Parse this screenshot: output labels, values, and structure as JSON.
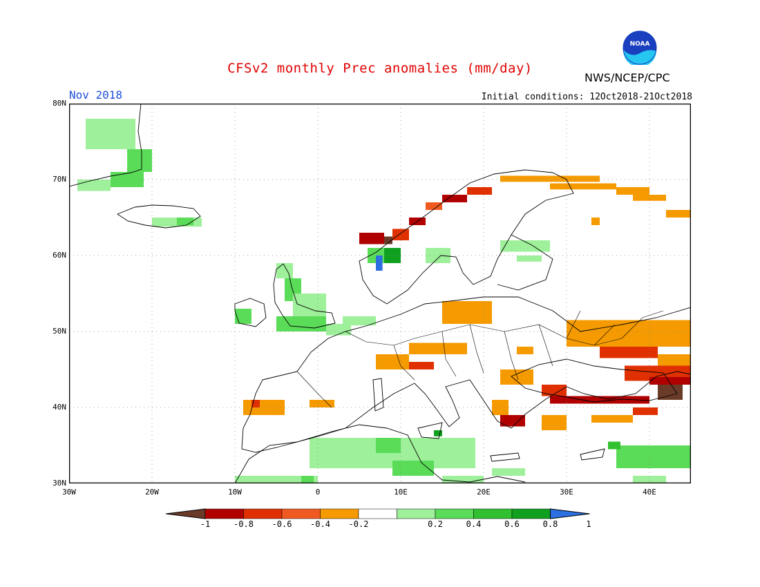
{
  "header": {
    "title": "CFSv2 monthly Prec anomalies (mm/day)",
    "org": "NWS/NCEP/CPC",
    "month": "Nov 2018",
    "initial_conditions": "Initial conditions: 12Oct2018-21Oct2018",
    "logo_text": "NOAA"
  },
  "map": {
    "lat_labels": [
      "80N",
      "70N",
      "60N",
      "50N",
      "40N",
      "30N"
    ],
    "lon_labels": [
      "30W",
      "20W",
      "10W",
      "0",
      "10E",
      "20E",
      "30E",
      "40E"
    ],
    "lon_range": [
      -30,
      45
    ],
    "lat_range": [
      30,
      80
    ],
    "ocean_color": "#ffffff",
    "border_color": "#000000",
    "grid": "dotted"
  },
  "legend": {
    "labels": [
      "-1",
      "-0.8",
      "-0.6",
      "-0.4",
      "-0.2",
      "0.2",
      "0.4",
      "0.6",
      "0.8",
      "1"
    ],
    "colors": [
      "#6b3b2a",
      "#b00000",
      "#e03000",
      "#f05a20",
      "#f59a00",
      "#ffffff",
      "#9ef09a",
      "#5adc58",
      "#30c030",
      "#10a020",
      "#2b6fe0"
    ]
  },
  "anomalies": {
    "colors": {
      "brown": "#6b3b2a",
      "darkred": "#b00000",
      "red": "#e03000",
      "orangered": "#f05a20",
      "orange": "#f59a00",
      "lightgreen": "#9ef09a",
      "green": "#5adc58",
      "midgreen": "#30c030",
      "darkgreen": "#10a020",
      "blue": "#2b6fe0"
    },
    "cells": [
      {
        "c": "lightgreen",
        "lon": -28,
        "lat": 78,
        "w": 6,
        "h": 4
      },
      {
        "c": "green",
        "lon": -23,
        "lat": 74,
        "w": 3,
        "h": 3
      },
      {
        "c": "green",
        "lon": -25,
        "lat": 71,
        "w": 4,
        "h": 2
      },
      {
        "c": "lightgreen",
        "lon": -29,
        "lat": 70,
        "w": 4,
        "h": 1.5
      },
      {
        "c": "lightgreen",
        "lon": -20,
        "lat": 65,
        "w": 6,
        "h": 1.2
      },
      {
        "c": "green",
        "lon": -17,
        "lat": 65,
        "w": 2,
        "h": 1
      },
      {
        "c": "lightgreen",
        "lon": -5,
        "lat": 59,
        "w": 2,
        "h": 2
      },
      {
        "c": "green",
        "lon": -4,
        "lat": 57,
        "w": 2,
        "h": 3
      },
      {
        "c": "lightgreen",
        "lon": -3,
        "lat": 55,
        "w": 4,
        "h": 3
      },
      {
        "c": "green",
        "lon": -10,
        "lat": 53,
        "w": 2,
        "h": 2
      },
      {
        "c": "green",
        "lon": -5,
        "lat": 52,
        "w": 6,
        "h": 2
      },
      {
        "c": "lightgreen",
        "lon": 1,
        "lat": 51,
        "w": 3,
        "h": 1.5
      },
      {
        "c": "lightgreen",
        "lon": 3,
        "lat": 52,
        "w": 4,
        "h": 1.2
      },
      {
        "c": "darkred",
        "lon": 5,
        "lat": 63,
        "w": 3,
        "h": 1.5
      },
      {
        "c": "brown",
        "lon": 8,
        "lat": 62.5,
        "w": 1,
        "h": 1
      },
      {
        "c": "red",
        "lon": 9,
        "lat": 63.5,
        "w": 2,
        "h": 1.5
      },
      {
        "c": "darkred",
        "lon": 11,
        "lat": 65,
        "w": 2,
        "h": 1
      },
      {
        "c": "orangered",
        "lon": 13,
        "lat": 67,
        "w": 2,
        "h": 1
      },
      {
        "c": "darkred",
        "lon": 15,
        "lat": 68,
        "w": 3,
        "h": 1
      },
      {
        "c": "red",
        "lon": 18,
        "lat": 69,
        "w": 3,
        "h": 1
      },
      {
        "c": "orange",
        "lon": 22,
        "lat": 70.5,
        "w": 12,
        "h": 0.8
      },
      {
        "c": "orange",
        "lon": 28,
        "lat": 69.5,
        "w": 8,
        "h": 0.8
      },
      {
        "c": "orange",
        "lon": 36,
        "lat": 69,
        "w": 4,
        "h": 1
      },
      {
        "c": "orange",
        "lon": 38,
        "lat": 68,
        "w": 4,
        "h": 0.8
      },
      {
        "c": "orange",
        "lon": 42,
        "lat": 66,
        "w": 3,
        "h": 1
      },
      {
        "c": "orange",
        "lon": 33,
        "lat": 65,
        "w": 1,
        "h": 1
      },
      {
        "c": "green",
        "lon": 6,
        "lat": 61,
        "w": 2,
        "h": 2
      },
      {
        "c": "blue",
        "lon": 7,
        "lat": 60,
        "w": 0.8,
        "h": 2
      },
      {
        "c": "darkgreen",
        "lon": 8,
        "lat": 61,
        "w": 2,
        "h": 2
      },
      {
        "c": "lightgreen",
        "lon": 13,
        "lat": 61,
        "w": 3,
        "h": 2
      },
      {
        "c": "lightgreen",
        "lon": 22,
        "lat": 62,
        "w": 6,
        "h": 1.5
      },
      {
        "c": "lightgreen",
        "lon": 24,
        "lat": 60,
        "w": 3,
        "h": 0.8
      },
      {
        "c": "orange",
        "lon": 15,
        "lat": 54,
        "w": 6,
        "h": 3
      },
      {
        "c": "orange",
        "lon": 11,
        "lat": 48.5,
        "w": 7,
        "h": 1.5
      },
      {
        "c": "orange",
        "lon": 7,
        "lat": 47,
        "w": 4,
        "h": 2
      },
      {
        "c": "red",
        "lon": 11,
        "lat": 46,
        "w": 3,
        "h": 1
      },
      {
        "c": "orange",
        "lon": 24,
        "lat": 48,
        "w": 2,
        "h": 1
      },
      {
        "c": "orange",
        "lon": 30,
        "lat": 51.5,
        "w": 15,
        "h": 3.5
      },
      {
        "c": "red",
        "lon": 34,
        "lat": 48,
        "w": 7,
        "h": 1.5
      },
      {
        "c": "red",
        "lon": 37,
        "lat": 45.5,
        "w": 8,
        "h": 2
      },
      {
        "c": "orange",
        "lon": 41,
        "lat": 47,
        "w": 4,
        "h": 1.5
      },
      {
        "c": "darkred",
        "lon": 40,
        "lat": 44,
        "w": 5,
        "h": 1
      },
      {
        "c": "brown",
        "lon": 41,
        "lat": 43,
        "w": 3,
        "h": 2
      },
      {
        "c": "darkred",
        "lon": 28,
        "lat": 41.5,
        "w": 12,
        "h": 1
      },
      {
        "c": "red",
        "lon": 27,
        "lat": 43,
        "w": 3,
        "h": 1.5
      },
      {
        "c": "orange",
        "lon": 22,
        "lat": 45,
        "w": 4,
        "h": 2
      },
      {
        "c": "darkred",
        "lon": 22,
        "lat": 39,
        "w": 3,
        "h": 1.5
      },
      {
        "c": "orange",
        "lon": 21,
        "lat": 41,
        "w": 2,
        "h": 2
      },
      {
        "c": "orange",
        "lon": 27,
        "lat": 39,
        "w": 3,
        "h": 2
      },
      {
        "c": "orange",
        "lon": 33,
        "lat": 39,
        "w": 5,
        "h": 1
      },
      {
        "c": "red",
        "lon": 38,
        "lat": 40,
        "w": 3,
        "h": 1
      },
      {
        "c": "orange",
        "lon": -9,
        "lat": 41,
        "w": 5,
        "h": 2
      },
      {
        "c": "red",
        "lon": -8,
        "lat": 41,
        "w": 1,
        "h": 1
      },
      {
        "c": "orange",
        "lon": -1,
        "lat": 41,
        "w": 3,
        "h": 1
      },
      {
        "c": "lightgreen",
        "lon": -10,
        "lat": 31,
        "w": 10,
        "h": 2
      },
      {
        "c": "lightgreen",
        "lon": -1,
        "lat": 36,
        "w": 20,
        "h": 4
      },
      {
        "c": "green",
        "lon": 7,
        "lat": 36,
        "w": 3,
        "h": 2
      },
      {
        "c": "green",
        "lon": 9,
        "lat": 33,
        "w": 5,
        "h": 2
      },
      {
        "c": "lightgreen",
        "lon": 15,
        "lat": 31,
        "w": 5,
        "h": 2
      },
      {
        "c": "lightgreen",
        "lon": 21,
        "lat": 32,
        "w": 4,
        "h": 1
      },
      {
        "c": "green",
        "lon": 36,
        "lat": 35,
        "w": 9,
        "h": 3
      },
      {
        "c": "midgreen",
        "lon": 35,
        "lat": 35.5,
        "w": 1.5,
        "h": 1
      },
      {
        "c": "lightgreen",
        "lon": 38,
        "lat": 31,
        "w": 4,
        "h": 1.5
      },
      {
        "c": "darkgreen",
        "lon": 14,
        "lat": 37,
        "w": 1,
        "h": 0.8
      },
      {
        "c": "green",
        "lon": -2,
        "lat": 31,
        "w": 1.5,
        "h": 1.5
      }
    ]
  }
}
